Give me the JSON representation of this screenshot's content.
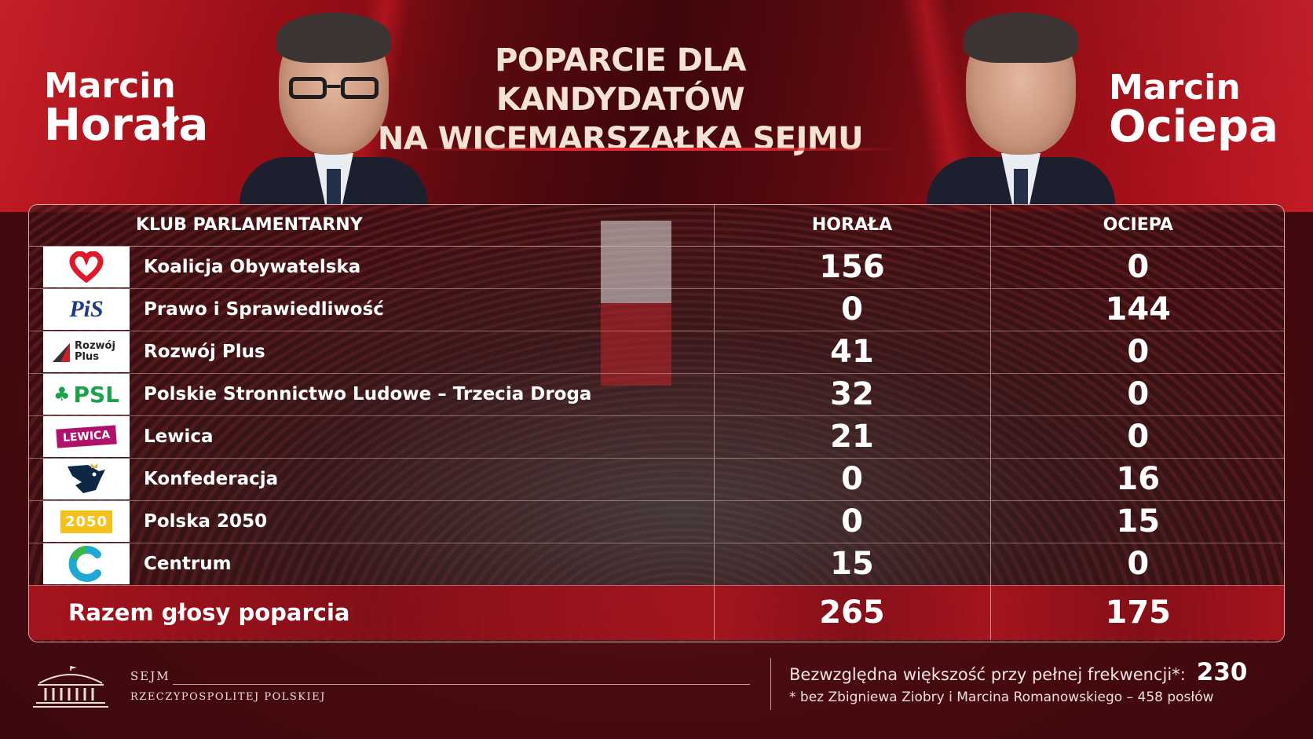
{
  "headline": {
    "line1": "POPARCIE DLA KANDYDATÓW",
    "line2": "NA WICEMARSZAŁKA SEJMU"
  },
  "candidates": {
    "left": {
      "first_name": "Marcin",
      "last_name": "Horała"
    },
    "right": {
      "first_name": "Marcin",
      "last_name": "Ociepa"
    }
  },
  "table": {
    "headers": {
      "club": "KLUB PARLAMENTARNY",
      "horala": "HORAŁA",
      "ociepa": "OCIEPA"
    },
    "rows": [
      {
        "logo_icon": "heart-logo-icon",
        "logo_text": "",
        "name": "Koalicja Obywatelska",
        "horala": "156",
        "ociepa": "0"
      },
      {
        "logo_icon": "pis-logo-icon",
        "logo_text": "PiS",
        "name": "Prawo i Sprawiedliwość",
        "horala": "0",
        "ociepa": "144"
      },
      {
        "logo_icon": "rozwoj-plus-logo-icon",
        "logo_text": "Rozwój Plus",
        "name": "Rozwój Plus",
        "horala": "41",
        "ociepa": "0"
      },
      {
        "logo_icon": "psl-clover-logo-icon",
        "logo_text": "PSL",
        "name": "Polskie Stronnictwo Ludowe – Trzecia Droga",
        "horala": "32",
        "ociepa": "0"
      },
      {
        "logo_icon": "lewica-logo-icon",
        "logo_text": "LEWICA",
        "name": "Lewica",
        "horala": "21",
        "ociepa": "0"
      },
      {
        "logo_icon": "konfederacja-eagle-logo-icon",
        "logo_text": "",
        "name": "Konfederacja",
        "horala": "0",
        "ociepa": "16"
      },
      {
        "logo_icon": "polska-2050-logo-icon",
        "logo_text": "2050",
        "name": "Polska 2050",
        "horala": "0",
        "ociepa": "15"
      },
      {
        "logo_icon": "centrum-c-logo-icon",
        "logo_text": "",
        "name": "Centrum",
        "horala": "15",
        "ociepa": "0"
      }
    ],
    "total": {
      "label": "Razem głosy poparcia",
      "horala": "265",
      "ociepa": "175"
    }
  },
  "footer": {
    "org_line1": "SEJM",
    "org_line2": "RZECZYPOSPOLITEJ POLSKIEJ",
    "majority_label": "Bezwzględna większość przy pełnej frekwencji*:",
    "majority_value": "230",
    "footnote": "* bez Zbigniewa Ziobry i Marcina Romanowskiego – 458 posłów"
  },
  "colors": {
    "brand_red": "#c1121c",
    "accent_red": "#e22931",
    "dark_maroon": "#3e070b",
    "headline_cream": "#f4e2d4"
  }
}
